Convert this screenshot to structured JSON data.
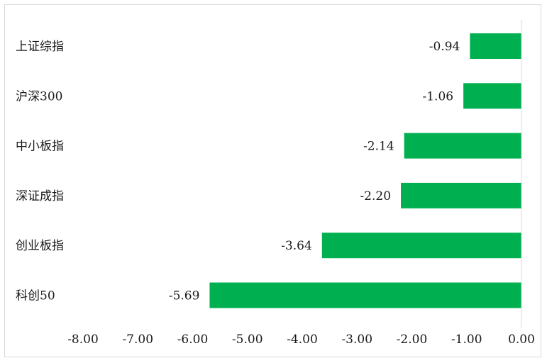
{
  "chart_data": {
    "type": "bar",
    "orientation": "horizontal",
    "categories": [
      "上证综指",
      "沪深300",
      "中小板指",
      "深证成指",
      "创业板指",
      "科创50"
    ],
    "values": [
      -0.94,
      -1.06,
      -2.14,
      -2.2,
      -3.64,
      -5.69
    ],
    "data_labels": [
      "-0.94",
      "-1.06",
      "-2.14",
      "-2.20",
      "-3.64",
      "-5.69"
    ],
    "xlim": [
      -8,
      0
    ],
    "x_ticks": [
      "-8.00",
      "-7.00",
      "-6.00",
      "-5.00",
      "-4.00",
      "-3.00",
      "-2.00",
      "-1.00",
      "0.00"
    ],
    "title": "",
    "xlabel": "",
    "ylabel": "",
    "grid": false,
    "legend": "none",
    "bar_color": "#00b050",
    "axis_color": "#d9d9d9"
  }
}
